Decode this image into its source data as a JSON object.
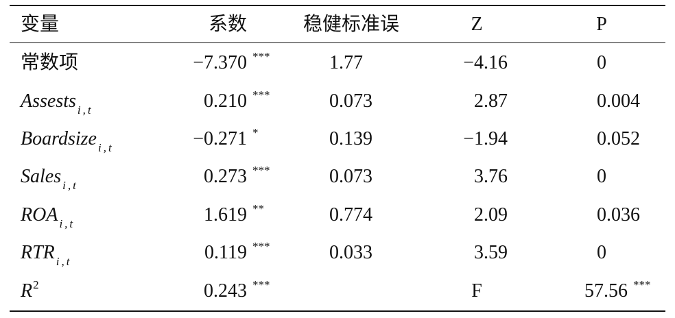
{
  "table": {
    "header": [
      "变量",
      "系数",
      "稳健标准误",
      "Z",
      "P"
    ],
    "rows": [
      {
        "variable": {
          "name": "常数项"
        },
        "coef": "−7.370",
        "stars": "***",
        "se": "1.77",
        "z": "−4.16",
        "p": "0"
      },
      {
        "variable": {
          "name": "Assests",
          "sub": "i,t"
        },
        "coef": "0.210",
        "stars": "***",
        "se": "0.073",
        "z": "2.87",
        "p": "0.004"
      },
      {
        "variable": {
          "name": "Boardsize",
          "sub": "i,t"
        },
        "coef": "−0.271",
        "stars": "*",
        "se": "0.139",
        "z": "−1.94",
        "p": "0.052"
      },
      {
        "variable": {
          "name": "Sales",
          "sub": "i,t"
        },
        "coef": "0.273",
        "stars": "***",
        "se": "0.073",
        "z": "3.76",
        "p": "0"
      },
      {
        "variable": {
          "name": "ROA",
          "sub": "i,t"
        },
        "coef": "1.619",
        "stars": "**",
        "se": "0.774",
        "z": "2.09",
        "p": "0.036"
      },
      {
        "variable": {
          "name": "RTR",
          "sub": "i,t"
        },
        "coef": "0.119",
        "stars": "***",
        "se": "0.033",
        "z": "3.59",
        "p": "0"
      },
      {
        "variable": {
          "name": "R",
          "sup": "2"
        },
        "coef": "0.243",
        "stars": "***",
        "z": "F",
        "p": "57.56",
        "p_stars": "***"
      }
    ]
  }
}
